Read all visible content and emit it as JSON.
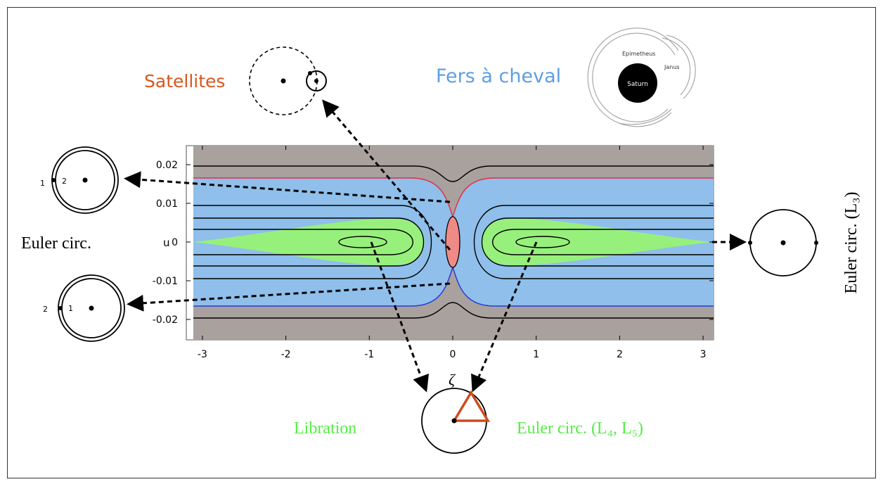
{
  "labels": {
    "satellites": "Satellites",
    "horseshoe": "Fers à cheval",
    "euler_left": "Euler circ.",
    "euler_l3": "Euler circ. (L₃)",
    "libration": "Libration",
    "euler_l4_l5": "Euler circ. (L₄, L₅)",
    "zeta": "ζ"
  },
  "inset": {
    "saturn": "Saturn",
    "epimetheus": "Epimetheus",
    "janus": "Janus"
  },
  "left_top": {
    "outer": "1",
    "inner": "2"
  },
  "left_bottom": {
    "outer": "2",
    "inner": "1"
  },
  "plot": {
    "y_label": "u",
    "xticks": [
      -3,
      -2,
      -1,
      0,
      1,
      2,
      3
    ],
    "yticks": [
      0.02,
      0.01,
      0,
      -0.01,
      -0.02
    ]
  }
}
